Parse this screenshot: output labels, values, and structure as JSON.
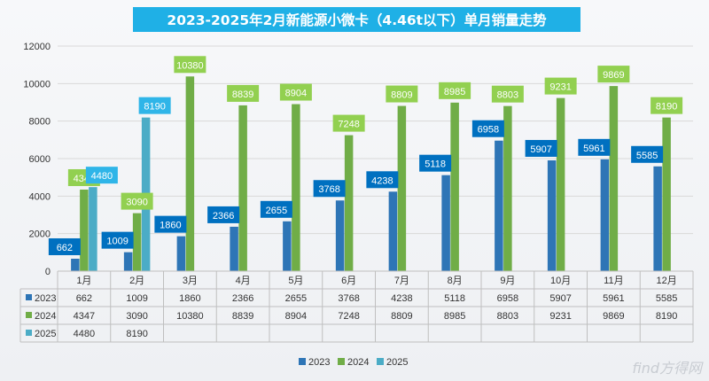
{
  "chart_data": {
    "type": "bar",
    "title": "2023-2025年2月新能源小微卡（4.46t以下）单月销量走势",
    "categories": [
      "1月",
      "2月",
      "3月",
      "4月",
      "5月",
      "6月",
      "7月",
      "8月",
      "9月",
      "10月",
      "11月",
      "12月"
    ],
    "series": [
      {
        "name": "2023",
        "color": "#2e75b6",
        "label_color": "#0070c0",
        "values": [
          662,
          1009,
          1860,
          2366,
          2655,
          3768,
          4238,
          5118,
          6958,
          5907,
          5961,
          5585
        ]
      },
      {
        "name": "2024",
        "color": "#70ad47",
        "label_color": "#92d050",
        "values": [
          4347,
          3090,
          10380,
          8839,
          8904,
          7248,
          8809,
          8985,
          8803,
          9231,
          9869,
          8190
        ]
      },
      {
        "name": "2025",
        "color": "#4bacc6",
        "label_color": "#2fb5e8",
        "values": [
          4480,
          8190,
          null,
          null,
          null,
          null,
          null,
          null,
          null,
          null,
          null,
          null
        ]
      }
    ],
    "yticks": [
      0,
      2000,
      4000,
      6000,
      8000,
      10000,
      12000
    ],
    "ylim": [
      0,
      12000
    ],
    "grid": true,
    "legend_position": "bottom"
  },
  "watermark": "find方得网"
}
